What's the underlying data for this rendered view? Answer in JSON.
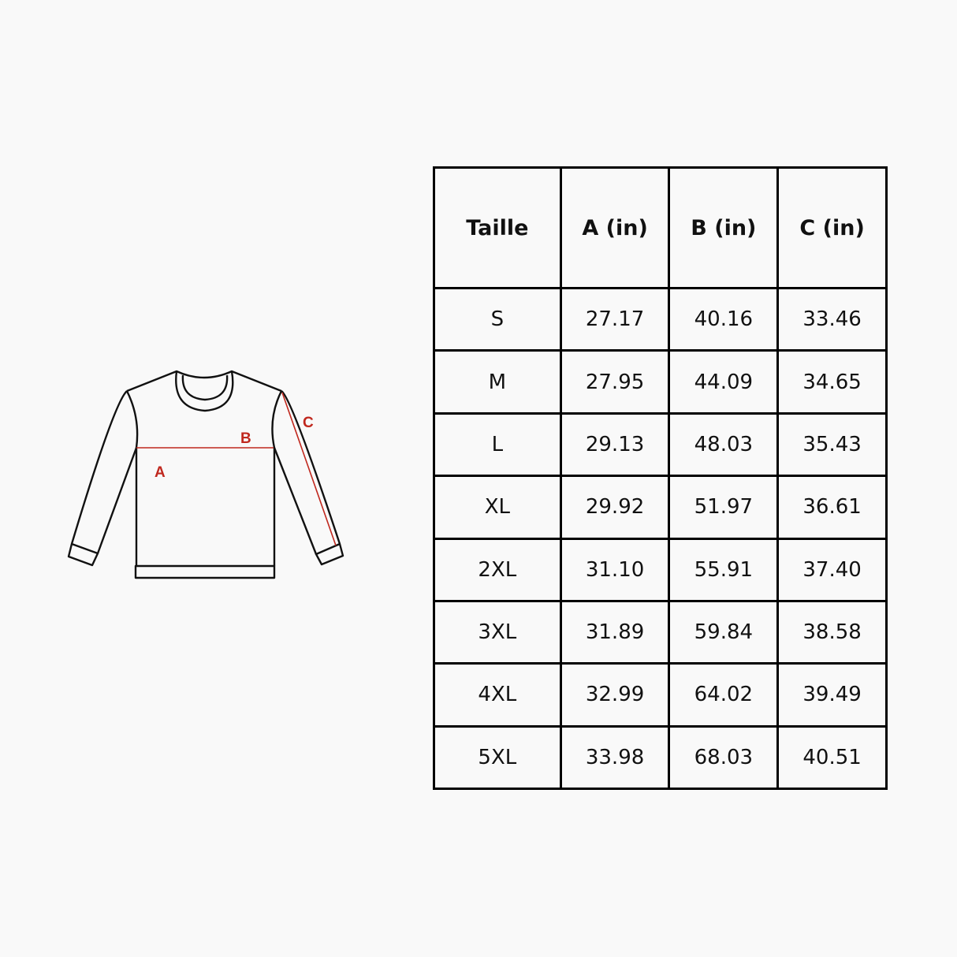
{
  "diagram": {
    "labels": {
      "a": "A",
      "b": "B",
      "c": "C"
    },
    "colors": {
      "outline": "#111111",
      "measure": "#c0281e"
    }
  },
  "table": {
    "headers": [
      "Taille",
      "A (in)",
      "B (in)",
      "C (in)"
    ],
    "rows": [
      [
        "S",
        "27.17",
        "40.16",
        "33.46"
      ],
      [
        "M",
        "27.95",
        "44.09",
        "34.65"
      ],
      [
        "L",
        "29.13",
        "48.03",
        "35.43"
      ],
      [
        "XL",
        "29.92",
        "51.97",
        "36.61"
      ],
      [
        "2XL",
        "31.10",
        "55.91",
        "37.40"
      ],
      [
        "3XL",
        "31.89",
        "59.84",
        "38.58"
      ],
      [
        "4XL",
        "32.99",
        "64.02",
        "39.49"
      ],
      [
        "5XL",
        "33.98",
        "68.03",
        "40.51"
      ]
    ]
  }
}
